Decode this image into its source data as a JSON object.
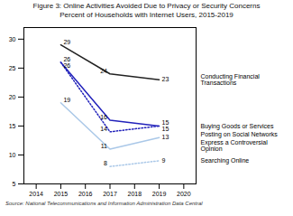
{
  "chart_data": {
    "type": "line",
    "title": "Figure 3: Online Activities Avoided Due to Privacy or Security Concerns",
    "subtitle": "Percent of Households with Internet Users, 2015-2019",
    "source": "Source: National Telecommunications and Information Administration Data Central",
    "x": [
      2015,
      2017,
      2019
    ],
    "series": [
      {
        "name": "Conducting Financial\nTransactions",
        "color": "#222222",
        "line_style": "solid",
        "values": [
          29,
          24,
          23
        ]
      },
      {
        "name": "Buying Goods or Services",
        "color": "#2222bb",
        "line_style": "solid",
        "values": [
          26,
          16,
          15
        ]
      },
      {
        "name": "Posting on Social Networks",
        "color": "#2222bb",
        "line_style": "dotted",
        "values": [
          26,
          14,
          15
        ]
      },
      {
        "name": "Express a Controversial\nOpinion",
        "color": "#aac8e8",
        "line_style": "solid",
        "values": [
          19,
          11,
          13
        ]
      },
      {
        "name": "Searching Online",
        "color": "#aac8e8",
        "line_style": "dotted",
        "values": [
          null,
          8,
          9
        ]
      }
    ],
    "xlim": [
      2013.5,
      2020.5
    ],
    "xticks": [
      2014,
      2015,
      2016,
      2017,
      2018,
      2019,
      2020
    ],
    "ylim": [
      5,
      32
    ],
    "yticks": [
      5,
      10,
      15,
      20,
      25,
      30
    ],
    "grid": false,
    "legend": "right",
    "data_labels": true
  }
}
